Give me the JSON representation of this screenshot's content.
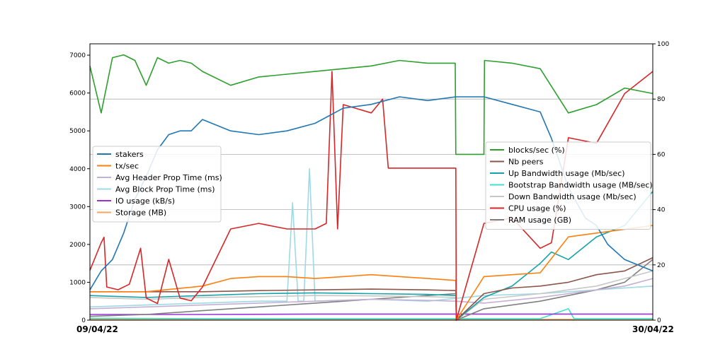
{
  "chart_data": {
    "type": "line",
    "x_start_label": "09/04/22",
    "x_end_label": "30/04/22",
    "grid": true,
    "left_axis": {
      "ylim": [
        0,
        7300
      ],
      "ticks": [
        "0",
        "1000",
        "2000",
        "3000",
        "4000",
        "5000",
        "6000",
        "7000"
      ],
      "tick_values": [
        0,
        1000,
        2000,
        3000,
        4000,
        5000,
        6000,
        7000
      ]
    },
    "right_axis": {
      "ylim": [
        0,
        100
      ],
      "ticks": [
        "0",
        "20",
        "40",
        "60",
        "80",
        "100"
      ],
      "tick_values": [
        0,
        20,
        40,
        60,
        80,
        100
      ]
    },
    "legend_left": {
      "placement": "middle-left",
      "entries": [
        {
          "name": "stakers",
          "color": "#1f77b4"
        },
        {
          "name": "tx/sec",
          "color": "#ff7f0e"
        },
        {
          "name": "Avg Header Prop Time (ms)",
          "color": "#c5b0d5"
        },
        {
          "name": "Avg Block Prop Time (ms)",
          "color": "#9edae5"
        },
        {
          "name": "IO usage (kB/s)",
          "color": "#9b30d9"
        },
        {
          "name": "Storage (MB)",
          "color": "#f4a460"
        }
      ]
    },
    "legend_right": {
      "placement": "middle-right",
      "entries": [
        {
          "name": "blocks/sec (%)",
          "color": "#2ca02c"
        },
        {
          "name": "Nb peers",
          "color": "#8c564b"
        },
        {
          "name": "Up Bandwidth usage (Mb/sec)",
          "color": "#17a2a8"
        },
        {
          "name": "Bootstrap Bandwidth usage (MB/sec)",
          "color": "#40e0d0"
        },
        {
          "name": "Down Bandwidth usage (Mb/sec)",
          "color": "#c7c7c7"
        },
        {
          "name": "CPU usage (%)",
          "color": "#d62728"
        },
        {
          "name": "RAM usage (GB)",
          "color": "#7f7f7f"
        }
      ]
    },
    "series": [
      {
        "name": "stakers",
        "axis": "left",
        "color": "#1f77b4",
        "x": [
          0,
          0.02,
          0.04,
          0.06,
          0.08,
          0.1,
          0.12,
          0.14,
          0.16,
          0.18,
          0.2,
          0.25,
          0.3,
          0.35,
          0.4,
          0.45,
          0.5,
          0.55,
          0.6,
          0.65,
          0.7,
          0.75,
          0.8,
          0.82,
          0.85,
          0.88,
          0.9,
          0.92,
          0.95,
          1.0
        ],
        "values": [
          800,
          1300,
          1600,
          2300,
          3200,
          3800,
          4500,
          4900,
          5000,
          5000,
          5300,
          5000,
          4900,
          5000,
          5200,
          5600,
          5700,
          5900,
          5800,
          5900,
          5900,
          5700,
          5500,
          4800,
          3500,
          2700,
          2500,
          2000,
          1600,
          1300
        ]
      },
      {
        "name": "blocks/sec (%)",
        "axis": "right",
        "color": "#2ca02c",
        "x": [
          0,
          0.02,
          0.04,
          0.06,
          0.08,
          0.1,
          0.12,
          0.14,
          0.16,
          0.18,
          0.2,
          0.25,
          0.3,
          0.35,
          0.4,
          0.45,
          0.5,
          0.55,
          0.6,
          0.649,
          0.65,
          0.7,
          0.701,
          0.75,
          0.8,
          0.85,
          0.9,
          0.95,
          1.0
        ],
        "values": [
          92,
          75,
          95,
          96,
          94,
          85,
          95,
          93,
          94,
          93,
          90,
          85,
          88,
          89,
          90,
          91,
          92,
          94,
          93,
          93,
          60,
          60,
          94,
          93,
          91,
          75,
          78,
          84,
          82
        ]
      },
      {
        "name": "CPU usage (%)",
        "axis": "right",
        "color": "#d62728",
        "x": [
          0,
          0.02,
          0.025,
          0.03,
          0.05,
          0.07,
          0.09,
          0.1,
          0.12,
          0.14,
          0.16,
          0.18,
          0.2,
          0.25,
          0.3,
          0.35,
          0.4,
          0.42,
          0.43,
          0.44,
          0.45,
          0.5,
          0.52,
          0.53,
          0.55,
          0.6,
          0.65,
          0.651,
          0.7,
          0.75,
          0.8,
          0.82,
          0.85,
          0.9,
          0.95,
          1.0
        ],
        "values": [
          18,
          28,
          30,
          12,
          11,
          13,
          26,
          8,
          6,
          22,
          8,
          7,
          12,
          33,
          35,
          33,
          33,
          35,
          90,
          33,
          78,
          75,
          80,
          55,
          55,
          55,
          55,
          0,
          35,
          37,
          26,
          28,
          66,
          64,
          82,
          90
        ]
      },
      {
        "name": "tx/sec",
        "axis": "left",
        "color": "#ff7f0e",
        "x": [
          0,
          0.1,
          0.2,
          0.25,
          0.3,
          0.35,
          0.4,
          0.45,
          0.5,
          0.55,
          0.6,
          0.65,
          0.651,
          0.7,
          0.75,
          0.8,
          0.85,
          0.9,
          0.95,
          1.0
        ],
        "values": [
          750,
          750,
          900,
          1100,
          1150,
          1150,
          1100,
          1150,
          1200,
          1150,
          1100,
          1050,
          0,
          1150,
          1200,
          1250,
          2200,
          2300,
          2400,
          2500
        ]
      },
      {
        "name": "Nb peers",
        "axis": "left",
        "color": "#8c564b",
        "x": [
          0,
          0.1,
          0.2,
          0.3,
          0.4,
          0.5,
          0.6,
          0.65,
          0.651,
          0.7,
          0.75,
          0.8,
          0.85,
          0.9,
          0.95,
          1.0
        ],
        "values": [
          750,
          750,
          750,
          780,
          800,
          820,
          800,
          780,
          0,
          700,
          850,
          900,
          1000,
          1200,
          1300,
          1650
        ]
      },
      {
        "name": "Up Bandwidth usage (Mb/sec)",
        "axis": "left",
        "color": "#17a2a8",
        "x": [
          0,
          0.1,
          0.2,
          0.3,
          0.4,
          0.5,
          0.6,
          0.65,
          0.651,
          0.7,
          0.75,
          0.8,
          0.82,
          0.85,
          0.9,
          0.95,
          1.0
        ],
        "values": [
          650,
          600,
          650,
          700,
          720,
          700,
          680,
          650,
          0,
          600,
          900,
          1500,
          1800,
          1600,
          2200,
          2500,
          3400
        ]
      },
      {
        "name": "Down Bandwidth usage (Mb/sec)",
        "axis": "left",
        "color": "#c7c7c7",
        "x": [
          0,
          0.1,
          0.2,
          0.3,
          0.4,
          0.5,
          0.6,
          0.65,
          0.651,
          0.7,
          0.8,
          0.85,
          0.9,
          0.95,
          1.0
        ],
        "values": [
          600,
          550,
          600,
          620,
          650,
          640,
          620,
          600,
          0,
          550,
          700,
          800,
          900,
          1100,
          1300
        ]
      },
      {
        "name": "Avg Header Prop Time (ms)",
        "axis": "left",
        "color": "#c5b0d5",
        "x": [
          0,
          0.1,
          0.2,
          0.3,
          0.4,
          0.5,
          0.6,
          0.65,
          0.7,
          0.8,
          0.85,
          0.9,
          0.95,
          1.0
        ],
        "values": [
          300,
          350,
          400,
          450,
          500,
          550,
          520,
          500,
          450,
          600,
          700,
          800,
          900,
          1100
        ]
      },
      {
        "name": "Avg Block Prop Time (ms)",
        "axis": "left",
        "color": "#9edae5",
        "x": [
          0,
          0.1,
          0.2,
          0.3,
          0.35,
          0.36,
          0.37,
          0.38,
          0.39,
          0.4,
          0.5,
          0.6,
          0.7,
          0.8,
          0.9,
          1.0
        ],
        "values": [
          350,
          400,
          450,
          500,
          500,
          3100,
          500,
          500,
          4000,
          500,
          550,
          500,
          650,
          700,
          800,
          900
        ]
      },
      {
        "name": "RAM usage (GB)",
        "axis": "left",
        "color": "#7f7f7f",
        "x": [
          0,
          0.1,
          0.2,
          0.3,
          0.4,
          0.5,
          0.6,
          0.65,
          0.651,
          0.7,
          0.8,
          0.85,
          0.9,
          0.95,
          1.0
        ],
        "values": [
          100,
          150,
          250,
          350,
          450,
          550,
          650,
          700,
          0,
          300,
          500,
          650,
          800,
          1000,
          1600
        ]
      },
      {
        "name": "IO usage (kB/s)",
        "axis": "left",
        "color": "#9b30d9",
        "x": [
          0,
          0.2,
          0.4,
          0.6,
          0.8,
          1.0
        ],
        "values": [
          150,
          150,
          160,
          160,
          160,
          160
        ]
      },
      {
        "name": "Bootstrap Bandwidth usage (MB/sec)",
        "axis": "left",
        "color": "#40e0d0",
        "x": [
          0,
          0.2,
          0.4,
          0.6,
          0.8,
          0.85,
          0.86,
          1.0
        ],
        "values": [
          50,
          40,
          40,
          40,
          40,
          300,
          40,
          40
        ]
      },
      {
        "name": "Storage (MB)",
        "axis": "left",
        "color": "#f4a460",
        "x": [
          0,
          0.5,
          1.0
        ],
        "values": [
          20,
          20,
          20
        ]
      }
    ]
  }
}
